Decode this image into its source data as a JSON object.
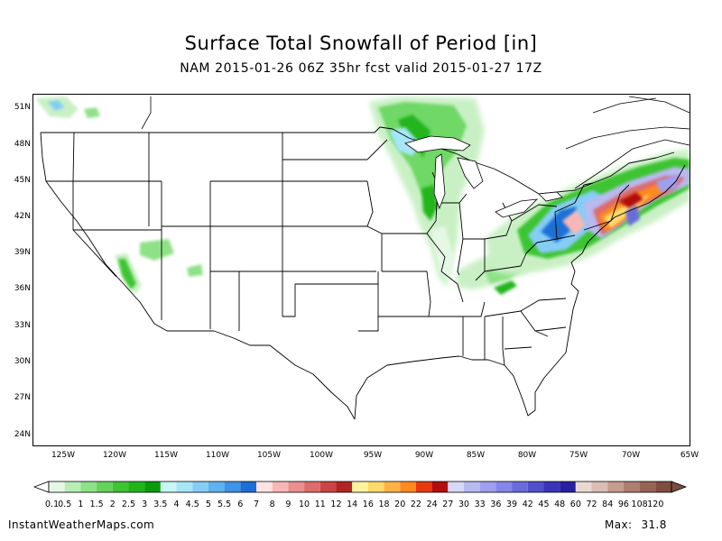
{
  "title": "Surface Total Snowfall of Period [in]",
  "subtitle": "NAM 2015-01-26 06Z 35hr fcst valid 2015-01-27 17Z",
  "lat_labels": [
    "51N",
    "48N",
    "45N",
    "42N",
    "39N",
    "36N",
    "33N",
    "30N",
    "27N",
    "24N"
  ],
  "lon_labels": [
    "125W",
    "120W",
    "115W",
    "110W",
    "105W",
    "100W",
    "95W",
    "90W",
    "85W",
    "80W",
    "75W",
    "70W",
    "65W"
  ],
  "legend": {
    "labels": [
      "0.1",
      "0.5",
      "1",
      "1.5",
      "2",
      "2.5",
      "3",
      "3.5",
      "4",
      "4.5",
      "5",
      "5.5",
      "6",
      "7",
      "8",
      "9",
      "10",
      "11",
      "12",
      "14",
      "16",
      "18",
      "20",
      "22",
      "24",
      "27",
      "30",
      "33",
      "36",
      "39",
      "42",
      "45",
      "48",
      "60",
      "72",
      "84",
      "96",
      "108",
      "120"
    ],
    "colors": [
      "#e5f8e5",
      "#b8eeb4",
      "#8ee187",
      "#63d35b",
      "#3cc433",
      "#22b51b",
      "#0b9a0b",
      "#c8f5f5",
      "#a6e6f7",
      "#86cdf5",
      "#5fb2ef",
      "#3d93e6",
      "#1c6fd6",
      "#ffe3e3",
      "#f7b7b7",
      "#eb8f8f",
      "#dd6c6c",
      "#cc4545",
      "#b22525",
      "#fff3a0",
      "#ffd96a",
      "#ffb347",
      "#ff8a1e",
      "#e83a0e",
      "#b20e0e",
      "#d7d7f7",
      "#b9b9f2",
      "#9f9ff0",
      "#8686e8",
      "#6b6bdd",
      "#5050cc",
      "#3a35b8",
      "#2a1f9e",
      "#ecd8d2",
      "#dbbdb3",
      "#c69c8f",
      "#ae7f70",
      "#966455",
      "#7d4d40"
    ]
  },
  "footer": {
    "site": "InstantWeatherMaps.com",
    "max_label": "Max:",
    "max_value": "31.8"
  }
}
